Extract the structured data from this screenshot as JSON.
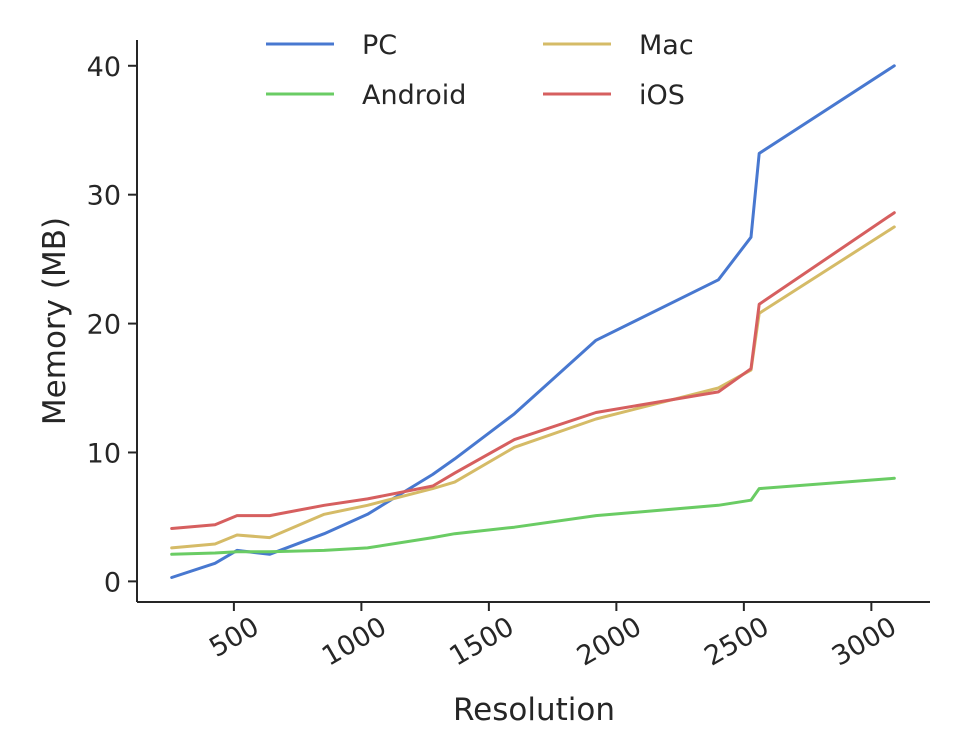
{
  "chart_data": {
    "type": "line",
    "xlabel": "Resolution",
    "ylabel": "Memory (MB)",
    "xlim": [
      120,
      3230
    ],
    "ylim": [
      -1.6,
      42
    ],
    "xticks": [
      500,
      1000,
      1500,
      2000,
      2500,
      3000
    ],
    "yticks": [
      0,
      10,
      20,
      30,
      40
    ],
    "legend_position": "top-center",
    "grid": false,
    "series": [
      {
        "name": "PC",
        "color": "#4878d0",
        "x": [
          256,
          426,
          512,
          640,
          854,
          1024,
          1280,
          1366,
          1600,
          1920,
          2400,
          2528,
          2560,
          3090
        ],
        "y": [
          0.3,
          1.4,
          2.4,
          2.1,
          3.7,
          5.2,
          8.3,
          9.5,
          13.0,
          18.7,
          23.4,
          26.7,
          33.2,
          40.0
        ]
      },
      {
        "name": "Android",
        "color": "#6acc64",
        "x": [
          256,
          426,
          512,
          640,
          854,
          1024,
          1280,
          1366,
          1600,
          1920,
          2400,
          2528,
          2560,
          3090
        ],
        "y": [
          2.1,
          2.2,
          2.3,
          2.3,
          2.4,
          2.6,
          3.4,
          3.7,
          4.2,
          5.1,
          5.9,
          6.3,
          7.2,
          8.0
        ]
      },
      {
        "name": "Mac",
        "color": "#d5bb67",
        "x": [
          256,
          426,
          512,
          640,
          854,
          1024,
          1280,
          1366,
          1600,
          1920,
          2400,
          2528,
          2560,
          3090
        ],
        "y": [
          2.6,
          2.9,
          3.6,
          3.4,
          5.2,
          5.9,
          7.2,
          7.7,
          10.4,
          12.6,
          15.0,
          16.4,
          20.8,
          27.5
        ]
      },
      {
        "name": "iOS",
        "color": "#d65f5f",
        "x": [
          256,
          426,
          512,
          640,
          854,
          1024,
          1280,
          1366,
          1600,
          1920,
          2400,
          2528,
          2560,
          3090
        ],
        "y": [
          4.1,
          4.4,
          5.1,
          5.1,
          5.9,
          6.4,
          7.4,
          8.4,
          11.0,
          13.1,
          14.7,
          16.5,
          21.5,
          28.6
        ]
      }
    ]
  }
}
